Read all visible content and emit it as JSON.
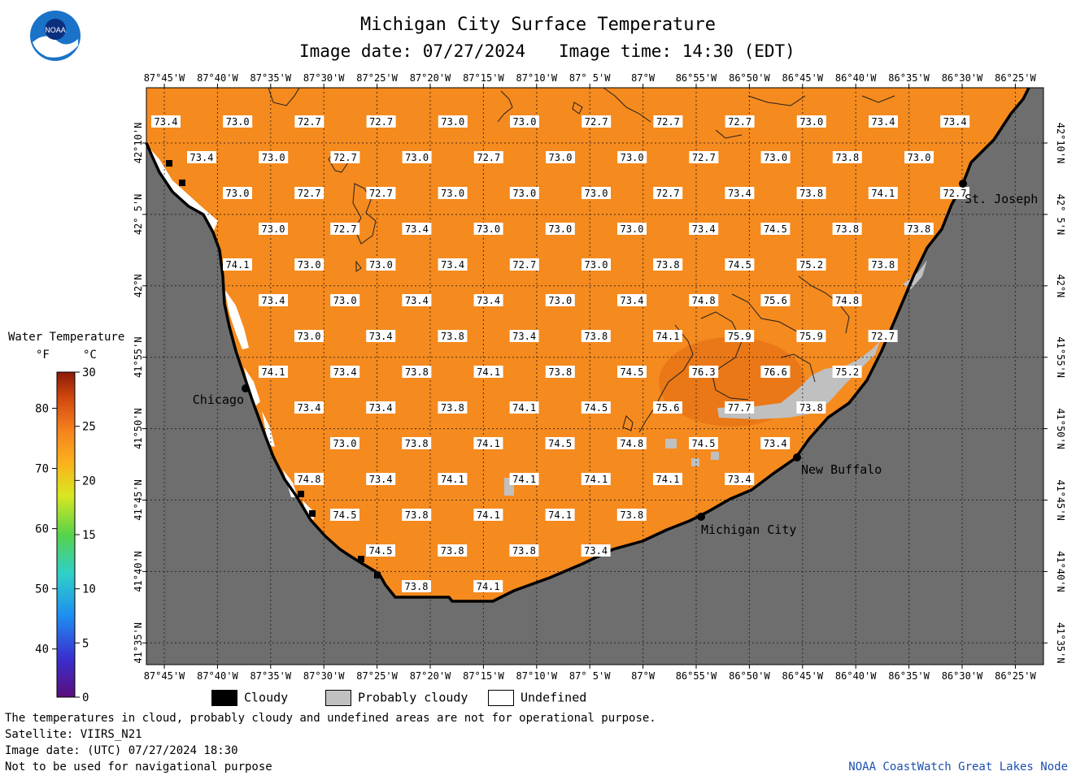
{
  "header": {
    "title": "Michigan City Surface Temperature",
    "date_label": "Image date: 07/27/2024",
    "time_label": "Image time: 14:30 (EDT)"
  },
  "logo": {
    "name": "noaa-logo",
    "text": "NOAA"
  },
  "axes": {
    "lon_labels": [
      "87°45'W",
      "87°40'W",
      "87°35'W",
      "87°30'W",
      "87°25'W",
      "87°20'W",
      "87°15'W",
      "87°10'W",
      "87° 5'W",
      "87°W",
      "86°55'W",
      "86°50'W",
      "86°45'W",
      "86°40'W",
      "86°35'W",
      "86°30'W",
      "86°25'W"
    ],
    "lat_labels": [
      "42°10'N",
      "42° 5'N",
      "42°N",
      "41°55'N",
      "41°50'N",
      "41°45'N",
      "41°40'N",
      "41°35'N"
    ]
  },
  "colorbar": {
    "title": "Water Temperature",
    "unit_f": "°F",
    "unit_c": "°C",
    "f_ticks": [
      "80",
      "70",
      "60",
      "50",
      "40"
    ],
    "c_ticks": [
      "30",
      "25",
      "20",
      "15",
      "10",
      "5",
      "0"
    ]
  },
  "places": [
    {
      "name": "St. Joseph"
    },
    {
      "name": "Chicago"
    },
    {
      "name": "New Buffalo"
    },
    {
      "name": "Michigan City"
    }
  ],
  "temperature_rows": [
    [
      "73.4",
      "73.0",
      "72.7",
      "72.7",
      "73.0",
      "73.0",
      "72.7",
      "72.7",
      "72.7",
      "73.0",
      "73.4",
      "73.4"
    ],
    [
      "73.4",
      "73.0",
      "72.7",
      "73.0",
      "72.7",
      "73.0",
      "73.0",
      "72.7",
      "73.0",
      "73.8",
      "73.0"
    ],
    [
      "73.0",
      "72.7",
      "72.7",
      "73.0",
      "73.0",
      "73.0",
      "72.7",
      "73.4",
      "73.8",
      "74.1",
      "72.7"
    ],
    [
      "73.0",
      "72.7",
      "73.4",
      "73.0",
      "73.0",
      "73.0",
      "73.4",
      "74.5",
      "73.8",
      "73.8"
    ],
    [
      "74.1",
      "73.0",
      "73.0",
      "73.4",
      "72.7",
      "73.0",
      "73.8",
      "74.5",
      "75.2",
      "73.8"
    ],
    [
      "73.4",
      "73.0",
      "73.4",
      "73.4",
      "73.0",
      "73.4",
      "74.8",
      "75.6",
      "74.8"
    ],
    [
      "73.0",
      "73.4",
      "73.8",
      "73.4",
      "73.8",
      "74.1",
      "75.9",
      "75.9",
      "72.7"
    ],
    [
      "74.1",
      "73.4",
      "73.8",
      "74.1",
      "73.8",
      "74.5",
      "76.3",
      "76.6",
      "75.2"
    ],
    [
      "73.4",
      "73.4",
      "73.8",
      "74.1",
      "74.5",
      "75.6",
      "77.7",
      "73.8"
    ],
    [
      "73.0",
      "73.8",
      "74.1",
      "74.5",
      "74.8",
      "74.5",
      "73.4"
    ],
    [
      "74.8",
      "73.4",
      "74.1",
      "74.1",
      "74.1",
      "74.1",
      "73.4"
    ],
    [
      "74.5",
      "73.8",
      "74.1",
      "74.1",
      "73.8"
    ],
    [
      "74.5",
      "73.8",
      "73.8",
      "73.4"
    ],
    [
      "73.8",
      "74.1"
    ]
  ],
  "legend": {
    "cloudy": "Cloudy",
    "probably_cloudy": "Probably cloudy",
    "undefined": "Undefined"
  },
  "footer": {
    "note": "The temperatures in cloud, probably cloudy and undefined areas are not for operational purpose.",
    "satellite": "Satellite: VIIRS_N21",
    "utc_date": "Image date: (UTC) 07/27/2024  18:30",
    "nav_warning": "Not to be used for navigational purpose",
    "credit": "NOAA CoastWatch Great Lakes Node"
  },
  "colors": {
    "water": "#f58a1e",
    "land": "#6e6e6e",
    "probably_cloudy": "#c0c0c0",
    "cloudy": "#000000",
    "undefined": "#ffffff",
    "credit_text": "#1d4fb0",
    "logo_blue": "#1a73c8"
  }
}
